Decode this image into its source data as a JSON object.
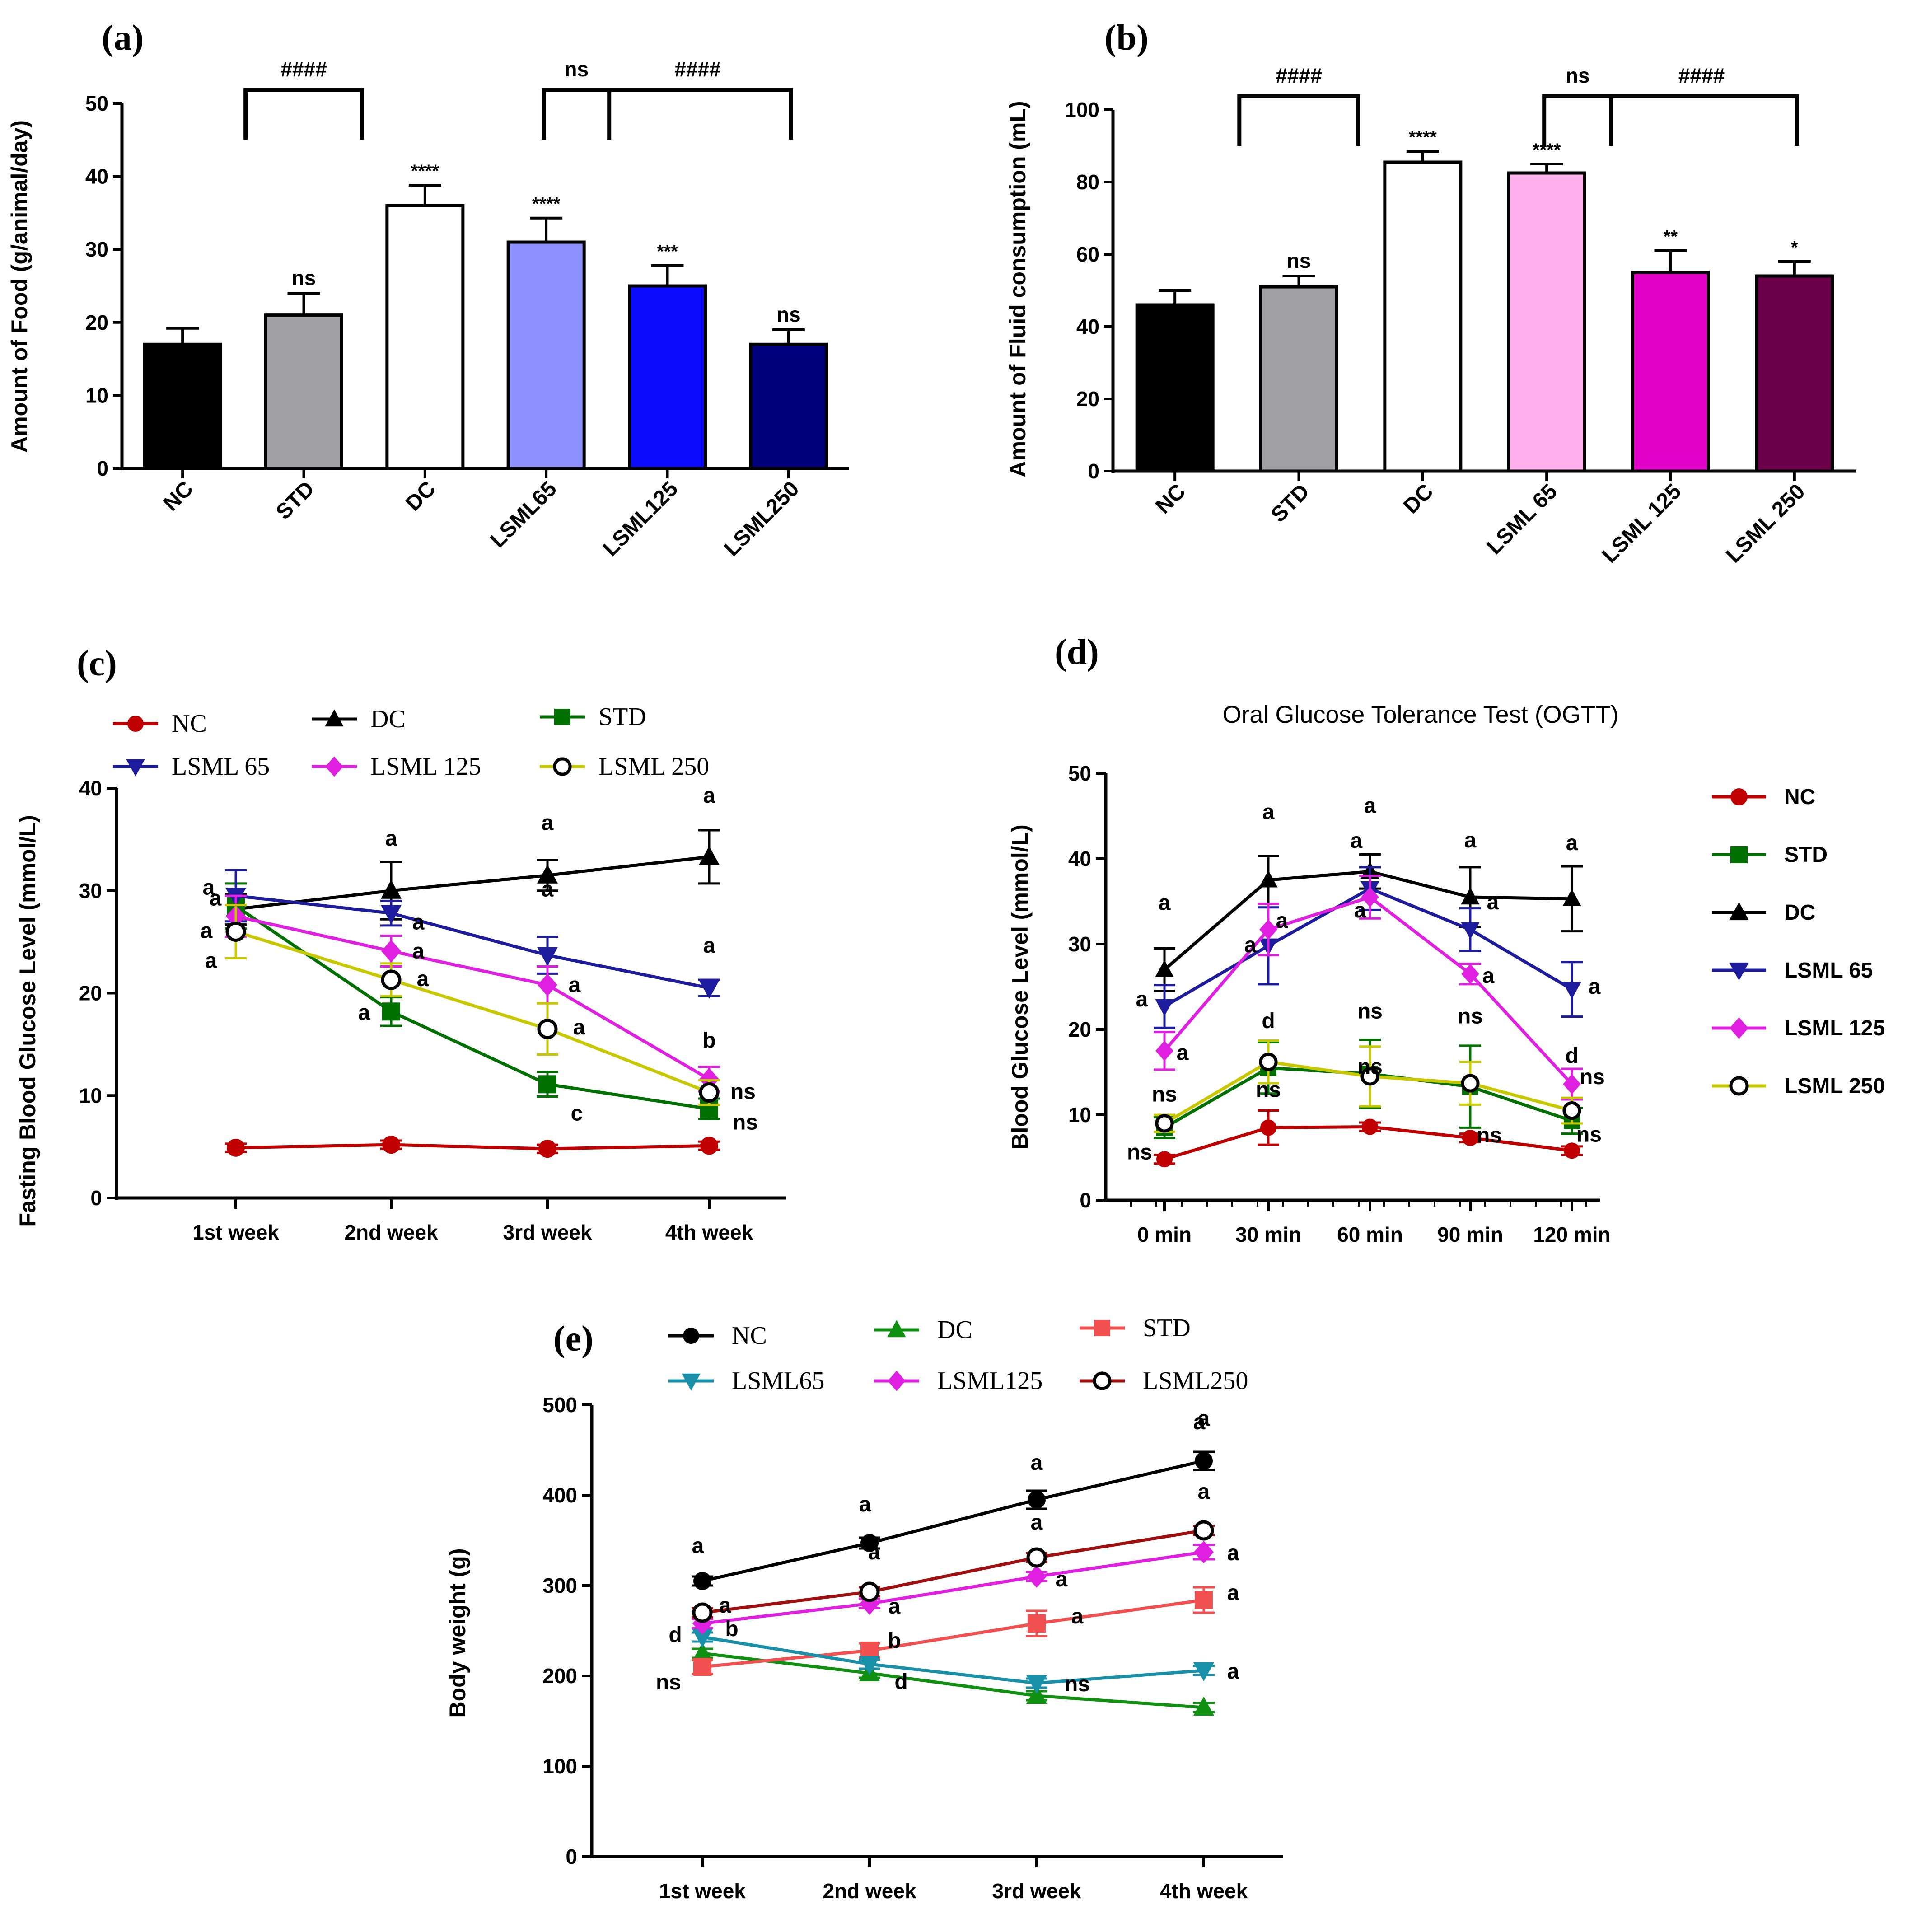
{
  "chart_data": [
    {
      "id": "a",
      "panel_label": "(a)",
      "type": "bar",
      "title": "",
      "xlabel": "",
      "ylabel": "Amount of Food (g/animal/day)",
      "ylim": [
        0,
        50
      ],
      "yticks": [
        0,
        10,
        20,
        30,
        40,
        50
      ],
      "categories": [
        "NC",
        "STD",
        "DC",
        "LSML65",
        "LSML125",
        "LSML250"
      ],
      "values": [
        17,
        21,
        36,
        31,
        25,
        17
      ],
      "errors": [
        2.2,
        3.0,
        2.8,
        3.3,
        2.8,
        2.0
      ],
      "colors": [
        "#000000",
        "#a0a0a4",
        "#ffffff",
        "#8c90ff",
        "#0b0bfb",
        "#00007d"
      ],
      "significance": [
        "",
        "ns",
        "****",
        "****",
        "***",
        "ns"
      ],
      "brackets": [
        {
          "from": 1,
          "to": 1,
          "label": "####"
        },
        {
          "from": 3,
          "to": 3.5,
          "label": "ns"
        },
        {
          "from": 3.5,
          "to": 5,
          "label": "####"
        }
      ]
    },
    {
      "id": "b",
      "panel_label": "(b)",
      "type": "bar",
      "title": "",
      "xlabel": "",
      "ylabel": "Amount of Fluid consumption  (mL)",
      "ylim": [
        0,
        100
      ],
      "yticks": [
        0,
        20,
        40,
        60,
        80,
        100
      ],
      "categories": [
        "NC",
        "STD",
        "DC",
        "LSML 65",
        "LSML 125",
        "LSML 250"
      ],
      "values": [
        46,
        51,
        85.5,
        82.5,
        55,
        54
      ],
      "errors": [
        4,
        3,
        3,
        2.5,
        6,
        4
      ],
      "colors": [
        "#000000",
        "#a0a0a4",
        "#ffffff",
        "#ffb0ec",
        "#e000c8",
        "#6a004a"
      ],
      "significance": [
        "",
        "ns",
        "****",
        "****",
        "**",
        "*"
      ],
      "brackets": [
        {
          "from": 1,
          "to": 1,
          "label": "####"
        },
        {
          "from": 3,
          "to": 3.5,
          "label": "ns"
        },
        {
          "from": 3.5,
          "to": 5,
          "label": "####"
        }
      ]
    },
    {
      "id": "c",
      "panel_label": "(c)",
      "type": "line",
      "title": "",
      "xlabel": "",
      "ylabel": "Fasting Blood Glucose Level (mmol/L)",
      "ylim": [
        0,
        40
      ],
      "yticks": [
        0,
        10,
        20,
        30,
        40
      ],
      "x": [
        "1st week",
        "2nd week",
        "3rd week",
        "4th week"
      ],
      "legend": "top",
      "series": [
        {
          "name": "NC",
          "color": "#c00000",
          "marker": "circle",
          "values": [
            4.9,
            5.2,
            4.8,
            5.1
          ],
          "errors": [
            0.4,
            0.4,
            0.4,
            0.4
          ],
          "labels": [
            "",
            "",
            "",
            ""
          ]
        },
        {
          "name": "DC",
          "color": "#000000",
          "marker": "triangle-up",
          "values": [
            28.2,
            30,
            31.5,
            33.3
          ],
          "errors": [
            1.5,
            2.8,
            1.5,
            2.6
          ],
          "labels": [
            "a",
            "a",
            "a",
            "a"
          ]
        },
        {
          "name": "STD",
          "color": "#007000",
          "marker": "square",
          "values": [
            28.5,
            18.2,
            11.1,
            8.7
          ],
          "errors": [
            2.2,
            1.4,
            1.2,
            1.0
          ],
          "labels": [
            "",
            "a",
            "c",
            "ns"
          ]
        },
        {
          "name": "LSML 65",
          "color": "#1c1c9c",
          "marker": "triangle-down",
          "values": [
            29.5,
            27.8,
            23.7,
            20.5
          ],
          "errors": [
            2.5,
            1.2,
            1.8,
            0.8
          ],
          "labels": [
            "",
            "a",
            "a",
            "a"
          ]
        },
        {
          "name": "LSML 125",
          "color": "#e020e0",
          "marker": "diamond",
          "values": [
            27.5,
            24.1,
            20.8,
            11.6
          ],
          "errors": [
            2.0,
            1.5,
            1.8,
            1.2
          ],
          "labels": [
            "a",
            "a",
            "a",
            "b"
          ]
        },
        {
          "name": "LSML 250",
          "color": "#c8c800",
          "marker": "open-circle",
          "values": [
            26,
            21.3,
            16.5,
            10.3
          ],
          "errors": [
            2.6,
            1.6,
            2.5,
            1.2
          ],
          "labels": [
            "a",
            "a",
            "a",
            "ns"
          ]
        }
      ],
      "extra_labels": [
        "a"
      ]
    },
    {
      "id": "d",
      "panel_label": "(d)",
      "type": "line",
      "title": "Oral Glucose Tolerance Test (OGTT)",
      "xlabel": "",
      "ylabel": "Blood Glucose Level (mmol/L)",
      "ylim": [
        0,
        50
      ],
      "yticks": [
        0,
        10,
        20,
        30,
        40,
        50
      ],
      "x": [
        "0 min",
        "30 min",
        "60 min",
        "90 min",
        "120 min"
      ],
      "legend": "right",
      "series": [
        {
          "name": "NC",
          "color": "#c00000",
          "marker": "circle",
          "values": [
            4.8,
            8.5,
            8.6,
            7.3,
            5.8
          ],
          "errors": [
            0.5,
            2.0,
            0.5,
            0.5,
            0.5
          ],
          "labels": [
            "ns",
            "ns",
            "ns",
            "ns",
            "ns"
          ]
        },
        {
          "name": "STD",
          "color": "#007000",
          "marker": "square",
          "values": [
            8.5,
            15.5,
            14.8,
            13.3,
            9.3
          ],
          "errors": [
            1.2,
            3.0,
            4.0,
            4.8,
            1.5
          ],
          "labels": [
            "ns",
            "d",
            "ns",
            "ns",
            "d"
          ]
        },
        {
          "name": "DC",
          "color": "#000000",
          "marker": "triangle-up",
          "values": [
            27,
            37.5,
            38.5,
            35.5,
            35.3
          ],
          "errors": [
            2.5,
            2.8,
            2.0,
            3.5,
            3.8
          ],
          "labels": [
            "a",
            "a",
            "a",
            "a",
            "a"
          ]
        },
        {
          "name": "LSML 65",
          "color": "#1c1c9c",
          "marker": "triangle-down",
          "values": [
            22.7,
            29.8,
            36.5,
            31.7,
            24.7
          ],
          "errors": [
            2.5,
            4.5,
            2.5,
            2.5,
            3.2
          ],
          "labels": [
            "a",
            "a",
            "a",
            "a",
            "a"
          ]
        },
        {
          "name": "LSML 125",
          "color": "#e020e0",
          "marker": "diamond",
          "values": [
            17.5,
            31.7,
            35.5,
            26.5,
            13.6
          ],
          "errors": [
            2.2,
            3.0,
            2.5,
            1.2,
            1.8
          ],
          "labels": [
            "a",
            "a",
            "a",
            "a",
            "ns"
          ]
        },
        {
          "name": "LSML 250",
          "color": "#c8c800",
          "marker": "open-circle",
          "values": [
            9.0,
            16.2,
            14.5,
            13.7,
            10.5
          ],
          "errors": [
            1.0,
            2.5,
            3.5,
            2.5,
            1.5
          ],
          "labels": [
            "",
            "",
            "",
            "",
            ""
          ]
        }
      ]
    },
    {
      "id": "e",
      "panel_label": "(e)",
      "type": "line",
      "title": "",
      "xlabel": "",
      "ylabel": "Body weight (g)",
      "ylim": [
        0,
        500
      ],
      "yticks": [
        0,
        100,
        200,
        300,
        400,
        500
      ],
      "x": [
        "1st week",
        "2nd week",
        "3rd week",
        "4th week"
      ],
      "legend": "top",
      "series": [
        {
          "name": "NC",
          "color": "#000000",
          "marker": "circle",
          "values": [
            305,
            347,
            395,
            438
          ],
          "errors": [
            5,
            6,
            10,
            10
          ],
          "labels": [
            "a",
            "a",
            "a",
            "a"
          ]
        },
        {
          "name": "DC",
          "color": "#109010",
          "marker": "triangle-up",
          "values": [
            225,
            203,
            178,
            165
          ],
          "errors": [
            5,
            5,
            5,
            5
          ],
          "labels": [
            "d",
            "d",
            "",
            ""
          ]
        },
        {
          "name": "STD",
          "color": "#f05050",
          "marker": "square",
          "values": [
            210,
            228,
            258,
            284
          ],
          "errors": [
            8,
            8,
            14,
            14
          ],
          "labels": [
            "ns",
            "b",
            "a",
            "a"
          ]
        },
        {
          "name": "LSML65",
          "color": "#1890a8",
          "marker": "triangle-down",
          "values": [
            243,
            213,
            192,
            206
          ],
          "errors": [
            5,
            5,
            5,
            5
          ],
          "labels": [
            "",
            "",
            "ns",
            "a"
          ]
        },
        {
          "name": "LSML125",
          "color": "#e020e0",
          "marker": "diamond",
          "values": [
            258,
            280,
            310,
            337
          ],
          "errors": [
            5,
            5,
            5,
            8
          ],
          "labels": [
            "b",
            "a",
            "a",
            "a"
          ]
        },
        {
          "name": "LSML250",
          "color": "#a01010",
          "marker": "open-circle",
          "values": [
            270,
            293,
            331,
            361
          ],
          "errors": [
            5,
            5,
            5,
            5
          ],
          "labels": [
            "a",
            "a",
            "a",
            "a"
          ]
        }
      ],
      "extra_labels": [
        "a"
      ]
    }
  ]
}
